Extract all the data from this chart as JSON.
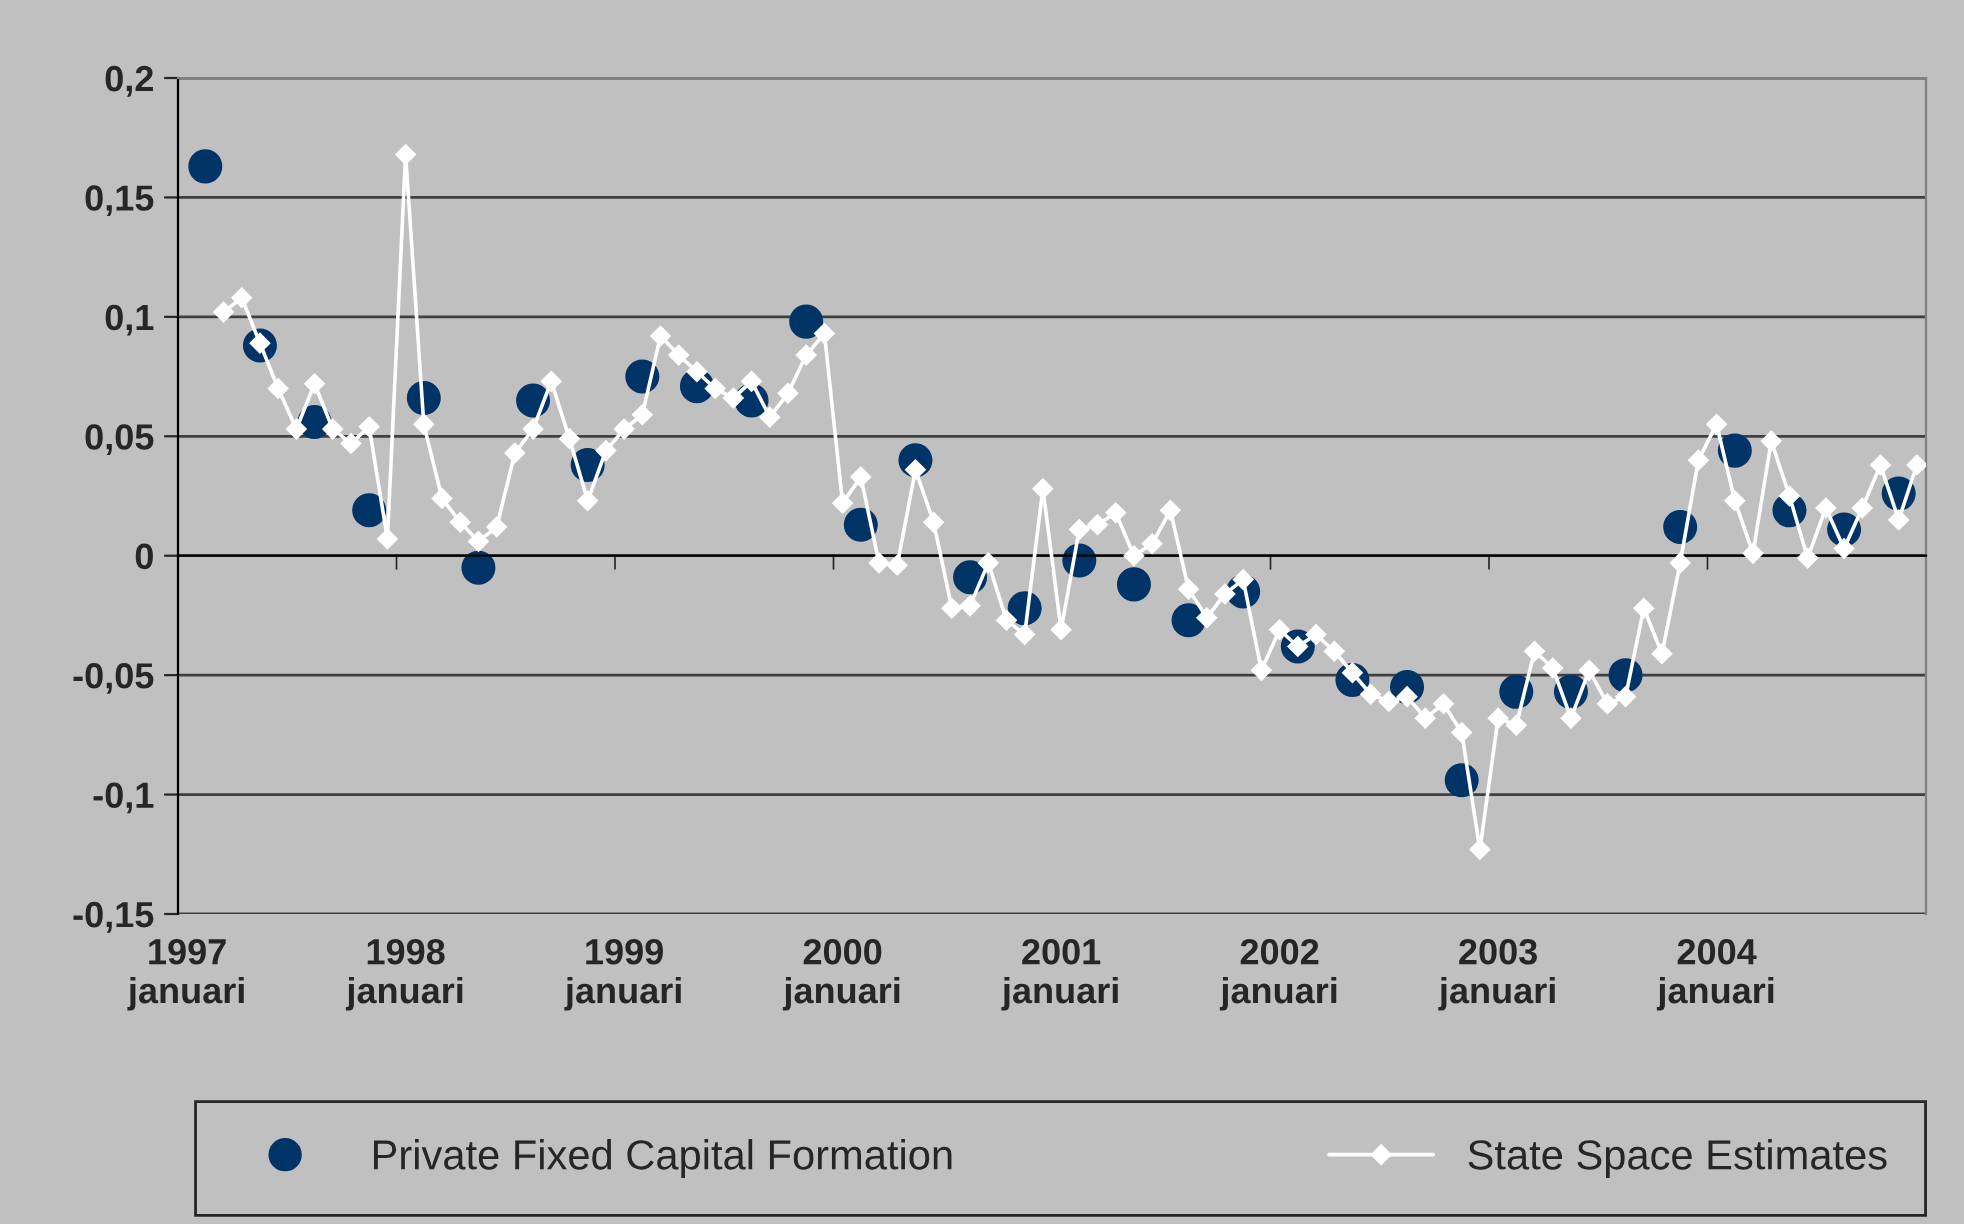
{
  "chart_data": {
    "type": "line",
    "categories": [
      "1997\njanuari",
      null,
      null,
      null,
      null,
      null,
      null,
      null,
      null,
      null,
      null,
      null,
      "1998\njanuari",
      null,
      null,
      null,
      null,
      null,
      null,
      null,
      null,
      null,
      null,
      null,
      "1999\njanuari",
      null,
      null,
      null,
      null,
      null,
      null,
      null,
      null,
      null,
      null,
      null,
      "2000\njanuari",
      null,
      null,
      null,
      null,
      null,
      null,
      null,
      null,
      null,
      null,
      null,
      "2001\njanuari",
      null,
      null,
      null,
      null,
      null,
      null,
      null,
      null,
      null,
      null,
      null,
      "2002\njanuari",
      null,
      null,
      null,
      null,
      null,
      null,
      null,
      null,
      null,
      null,
      null,
      "2003\njanuari",
      null,
      null,
      null,
      null,
      null,
      null,
      null,
      null,
      null,
      null,
      null,
      "2004\njanuari",
      null,
      null,
      null,
      null,
      null,
      null,
      null,
      null,
      null,
      null,
      null
    ],
    "series": [
      {
        "name": "Private Fixed Capital Formation",
        "type": "scatter",
        "color": "#003366",
        "marker": "circle",
        "values": [
          null,
          0.163,
          null,
          null,
          0.088,
          null,
          null,
          0.056,
          null,
          null,
          0.019,
          null,
          null,
          0.066,
          null,
          null,
          -0.005,
          null,
          null,
          0.065,
          null,
          null,
          0.038,
          null,
          null,
          0.075,
          null,
          null,
          0.071,
          null,
          null,
          0.065,
          null,
          null,
          0.098,
          null,
          null,
          0.013,
          null,
          null,
          0.04,
          null,
          null,
          -0.009,
          null,
          null,
          -0.022,
          null,
          null,
          -0.002,
          null,
          null,
          -0.012,
          null,
          null,
          -0.027,
          null,
          null,
          -0.015,
          null,
          null,
          -0.038,
          null,
          null,
          -0.052,
          null,
          null,
          -0.055,
          null,
          null,
          -0.094,
          null,
          null,
          -0.057,
          null,
          null,
          -0.057,
          null,
          null,
          -0.05,
          null,
          null,
          0.012,
          null,
          null,
          0.044,
          null,
          null,
          0.019,
          null,
          null,
          0.011,
          null,
          null,
          0.026,
          null
        ]
      },
      {
        "name": "State Space Estimates",
        "color": "#ffffff",
        "marker": "diamond",
        "line_style": "solid",
        "values": [
          null,
          null,
          0.102,
          0.108,
          0.089,
          0.07,
          0.053,
          0.072,
          0.053,
          0.047,
          0.054,
          0.007,
          0.168,
          0.055,
          0.024,
          0.014,
          0.006,
          0.012,
          0.043,
          0.053,
          0.073,
          0.049,
          0.023,
          0.044,
          0.053,
          0.059,
          0.092,
          0.084,
          0.077,
          0.07,
          0.066,
          0.073,
          0.058,
          0.068,
          0.084,
          0.093,
          0.022,
          0.033,
          -0.003,
          -0.004,
          0.036,
          0.014,
          -0.022,
          -0.021,
          -0.003,
          -0.027,
          -0.033,
          0.028,
          -0.031,
          0.011,
          0.013,
          0.018,
          0.0,
          0.005,
          0.019,
          -0.014,
          -0.026,
          -0.016,
          -0.01,
          -0.048,
          -0.031,
          -0.038,
          -0.033,
          -0.04,
          -0.049,
          -0.058,
          -0.061,
          -0.059,
          -0.068,
          -0.062,
          -0.074,
          -0.123,
          -0.068,
          -0.071,
          -0.04,
          -0.047,
          -0.068,
          -0.048,
          -0.062,
          -0.059,
          -0.022,
          -0.041,
          -0.003,
          0.04,
          0.055,
          0.023,
          0.001,
          0.048,
          0.025,
          -0.001,
          0.02,
          0.003,
          0.02,
          0.038,
          0.015,
          0.038
        ]
      }
    ],
    "ylim": [
      -0.15,
      0.2
    ],
    "yticks": [
      {
        "value": -0.15,
        "label": "-0,15"
      },
      {
        "value": -0.1,
        "label": "-0,1"
      },
      {
        "value": -0.05,
        "label": "-0,05"
      },
      0,
      {
        "value": 0.05,
        "label": "0,05"
      },
      {
        "value": 0.1,
        "label": "0,1"
      },
      {
        "value": 0.15,
        "label": "0,15"
      },
      {
        "value": 0.2,
        "label": "0,2"
      }
    ],
    "grid": "y",
    "legend": "bottom"
  }
}
